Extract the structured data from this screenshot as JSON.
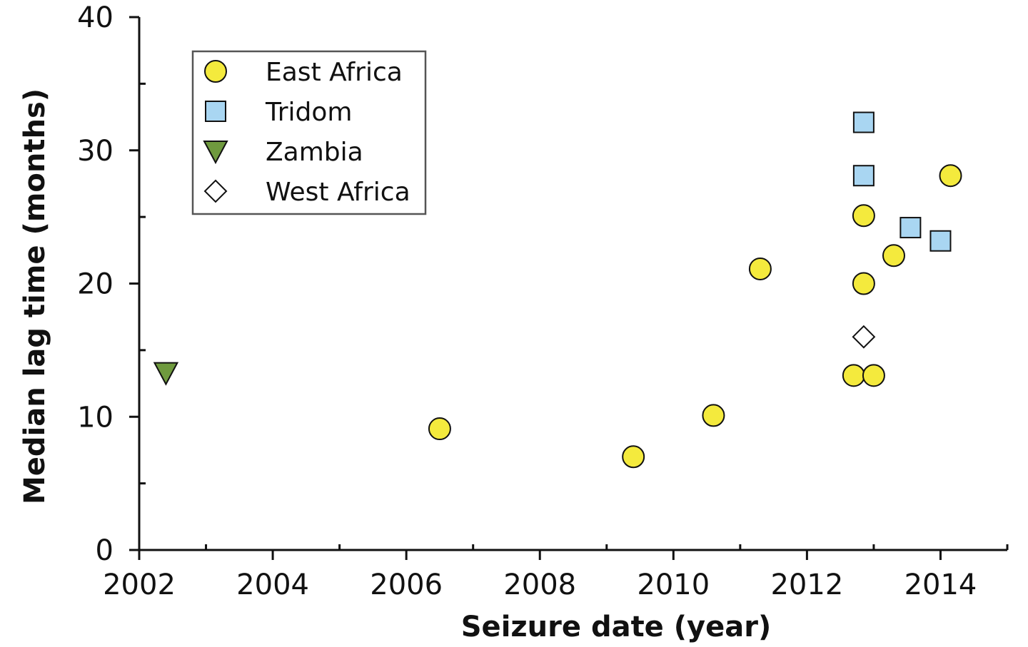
{
  "chart_data": {
    "type": "scatter",
    "title": "",
    "xlabel": "Seizure date (year)",
    "ylabel": "Median lag time (months)",
    "xlim": [
      2002,
      2015
    ],
    "ylim": [
      0,
      40
    ],
    "x_ticks": [
      2002,
      2004,
      2006,
      2008,
      2010,
      2012,
      2014
    ],
    "x_tick_labels": [
      "2002",
      "2004",
      "2006",
      "2008",
      "2010",
      "2012",
      "2014"
    ],
    "x_minor_ticks": [
      2003,
      2005,
      2007,
      2009,
      2011,
      2013,
      2015
    ],
    "y_ticks": [
      0,
      10,
      20,
      30,
      40
    ],
    "y_tick_labels": [
      "0",
      "10",
      "20",
      "30",
      "40"
    ],
    "y_minor_ticks": [
      5,
      15,
      25,
      35
    ],
    "grid": false,
    "legend_position": "top-left",
    "series": [
      {
        "name": "East Africa",
        "marker": "circle",
        "color": "#f4ea3d",
        "points": [
          {
            "x": 2006.5,
            "y": 9.1
          },
          {
            "x": 2009.4,
            "y": 7.0
          },
          {
            "x": 2010.6,
            "y": 10.1
          },
          {
            "x": 2011.3,
            "y": 21.1
          },
          {
            "x": 2012.7,
            "y": 13.1
          },
          {
            "x": 2013.0,
            "y": 13.1
          },
          {
            "x": 2012.85,
            "y": 20.0
          },
          {
            "x": 2012.85,
            "y": 25.1
          },
          {
            "x": 2013.3,
            "y": 22.1
          },
          {
            "x": 2014.15,
            "y": 28.1
          }
        ]
      },
      {
        "name": "Tridom",
        "marker": "square",
        "color": "#a9d6f2",
        "points": [
          {
            "x": 2012.85,
            "y": 32.1
          },
          {
            "x": 2012.85,
            "y": 28.1
          },
          {
            "x": 2013.55,
            "y": 24.2
          },
          {
            "x": 2014.0,
            "y": 23.2
          }
        ]
      },
      {
        "name": "Zambia",
        "marker": "triangle-down",
        "color": "#6f9a3e",
        "points": [
          {
            "x": 2002.4,
            "y": 13.3
          }
        ]
      },
      {
        "name": "West Africa",
        "marker": "diamond",
        "color": "#ffffff",
        "points": [
          {
            "x": 2012.85,
            "y": 16.0
          }
        ]
      }
    ]
  }
}
